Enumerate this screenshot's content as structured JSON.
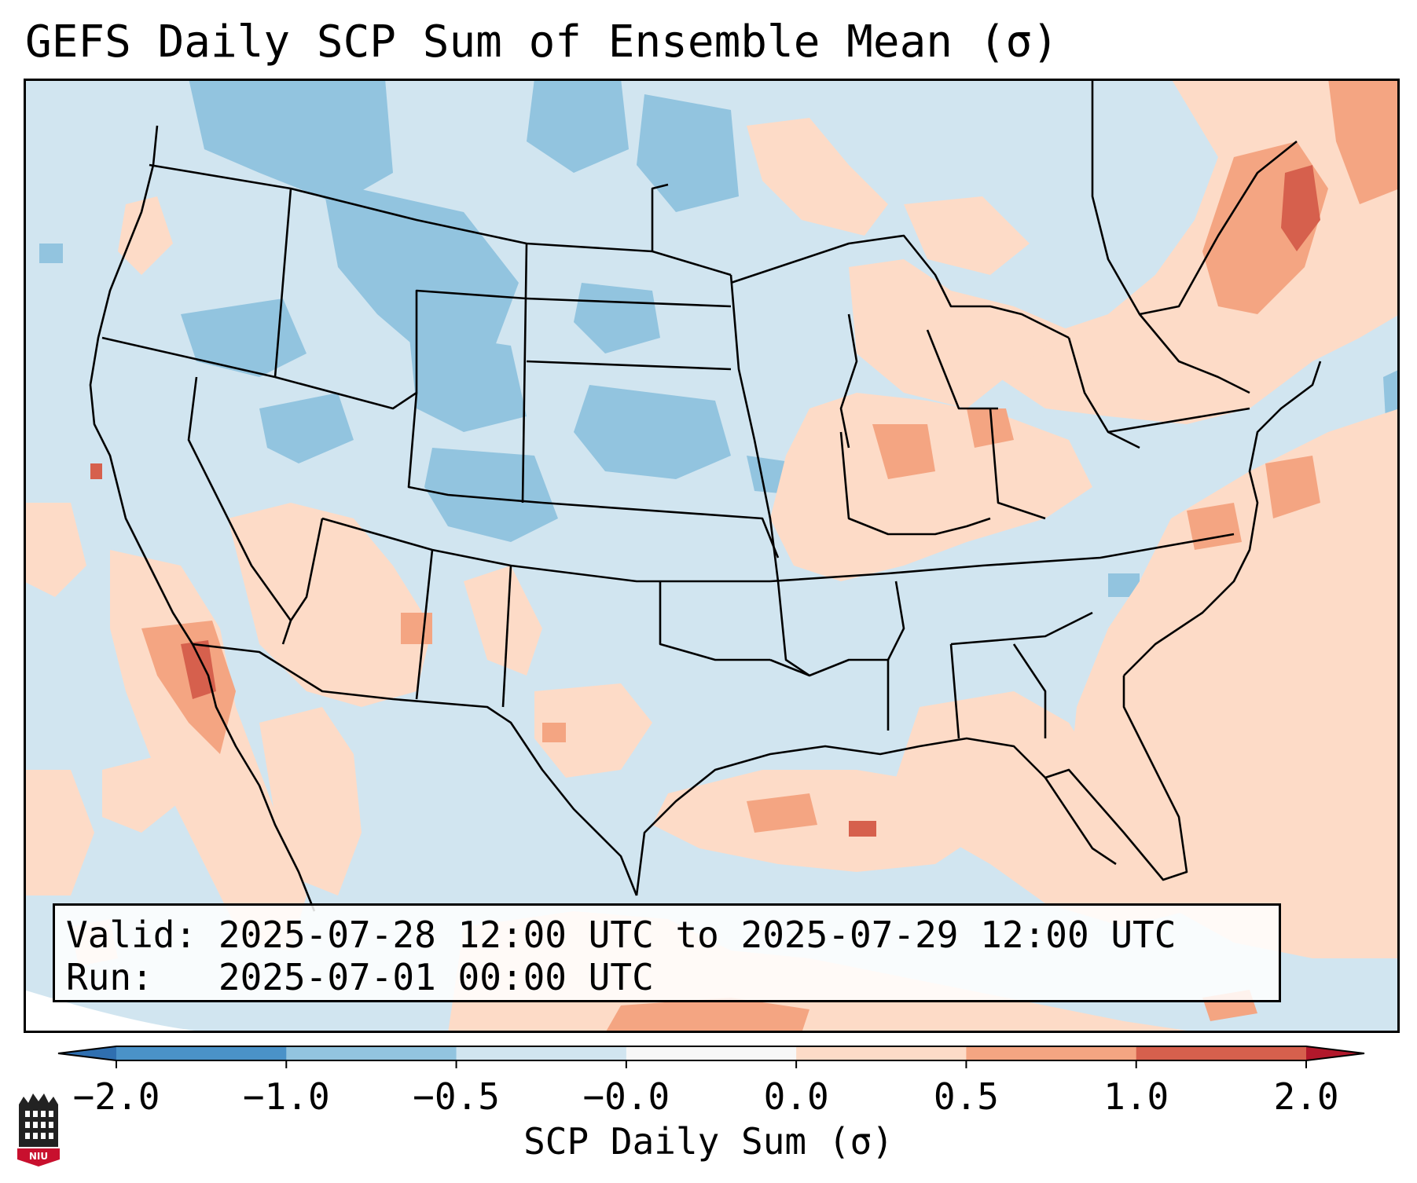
{
  "title": "GEFS Daily SCP Sum of Ensemble Mean (σ)",
  "info": {
    "valid_label": "Valid:",
    "valid_value": "2025-07-28 12:00 UTC to 2025-07-29 12:00 UTC",
    "run_label": "Run:",
    "run_value": "2025-07-01 00:00 UTC"
  },
  "colorbar": {
    "label": "SCP Daily Sum (σ)",
    "tick_labels": [
      "−2.0",
      "−1.0",
      "−0.5",
      "−0.0",
      "0.0",
      "0.5",
      "1.0",
      "2.0"
    ],
    "bins": [
      {
        "range": "< -2.0",
        "color": "#2f6fb0"
      },
      {
        "range": "-2.0 to -1.0",
        "color": "#4a92c8"
      },
      {
        "range": "-1.0 to -0.5",
        "color": "#92c4df"
      },
      {
        "range": "-0.5 to -0.0",
        "color": "#d1e5f0"
      },
      {
        "range": "-0.0 to 0.0",
        "color": "#f7f7f7"
      },
      {
        "range": "0.0 to 0.5",
        "color": "#fddbc7"
      },
      {
        "range": "0.5 to 1.0",
        "color": "#f4a582"
      },
      {
        "range": "1.0 to 2.0",
        "color": "#d6604d"
      },
      {
        "range": "> 2.0",
        "color": "#b2182b"
      }
    ]
  },
  "logo": {
    "text": "NIU",
    "icon": "niu-tower-logo-icon"
  },
  "map": {
    "projection": "Lambert Conformal",
    "region": "Continental United States",
    "colors": {
      "background_negative": "#d1e5f0",
      "negative_moderate": "#92c4df",
      "positive_light": "#fddbc7",
      "positive_moderate": "#f4a582",
      "positive_strong": "#d6604d",
      "boundary": "#000000"
    }
  }
}
